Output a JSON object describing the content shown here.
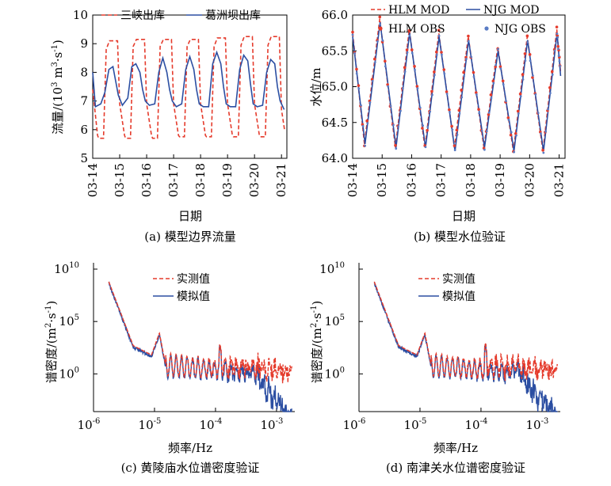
{
  "chart_data": [
    {
      "panel": "a",
      "type": "line",
      "caption": "(a) 模型边界流量",
      "xlabel": "日期",
      "ylabel": "流量/(10³ m³·s⁻¹)",
      "ylabel_main": "流量/(10",
      "ylabel_exp1": "3",
      "ylabel_mid": " m",
      "ylabel_exp2": "3",
      "ylabel_mid2": "·s",
      "ylabel_exp3": "-1",
      "ylabel_end": ")",
      "x_ticks": [
        "03-14",
        "03-15",
        "03-16",
        "03-17",
        "03-18",
        "03-19",
        "03-20",
        "03-21"
      ],
      "xlim": [
        0,
        7.2
      ],
      "ylim": [
        5,
        10
      ],
      "y_ticks": [
        5,
        6,
        7,
        8,
        9,
        10
      ],
      "legend_position": "top",
      "series": [
        {
          "name": "三峡出库",
          "style": "dashed",
          "color": "#e53b2c",
          "x": [
            0,
            0.18,
            0.22,
            0.4,
            0.5,
            0.62,
            0.92,
            1.0,
            1.18,
            1.22,
            1.4,
            1.5,
            1.62,
            1.92,
            2.0,
            2.18,
            2.22,
            2.4,
            2.5,
            2.62,
            2.92,
            3.0,
            3.18,
            3.22,
            3.4,
            3.5,
            3.62,
            3.92,
            4.0,
            4.18,
            4.22,
            4.4,
            4.5,
            4.62,
            4.92,
            5.0,
            5.18,
            5.22,
            5.4,
            5.5,
            5.62,
            5.92,
            6.0,
            6.18,
            6.22,
            6.4,
            6.5,
            6.62,
            6.92,
            7.0,
            7.12
          ],
          "y": [
            7.4,
            5.8,
            5.7,
            5.7,
            8.8,
            9.1,
            9.1,
            6.9,
            5.8,
            5.7,
            5.7,
            8.9,
            9.15,
            9.15,
            6.9,
            5.8,
            5.7,
            5.7,
            8.9,
            9.15,
            9.15,
            6.9,
            5.8,
            5.75,
            5.75,
            8.9,
            9.15,
            9.15,
            6.9,
            5.8,
            5.75,
            5.75,
            8.9,
            9.2,
            9.2,
            6.9,
            5.8,
            5.75,
            5.75,
            8.95,
            9.25,
            9.25,
            6.9,
            5.8,
            5.75,
            5.75,
            8.95,
            9.25,
            9.25,
            6.7,
            5.95
          ]
        },
        {
          "name": "葛洲坝出库",
          "style": "solid",
          "color": "#2b4ea2",
          "x": [
            0,
            0.1,
            0.3,
            0.45,
            0.6,
            0.75,
            0.85,
            0.95,
            1.1,
            1.3,
            1.45,
            1.6,
            1.75,
            1.85,
            1.95,
            2.1,
            2.3,
            2.45,
            2.6,
            2.75,
            2.85,
            2.95,
            3.1,
            3.3,
            3.45,
            3.6,
            3.75,
            3.85,
            3.95,
            4.1,
            4.3,
            4.45,
            4.6,
            4.75,
            4.85,
            4.95,
            5.1,
            5.3,
            5.45,
            5.6,
            5.75,
            5.85,
            5.95,
            6.1,
            6.3,
            6.45,
            6.6,
            6.75,
            6.85,
            6.95,
            7.1
          ],
          "y": [
            8.0,
            6.8,
            6.9,
            7.3,
            8.1,
            8.2,
            7.7,
            7.2,
            6.85,
            7.1,
            8.2,
            8.3,
            8.0,
            7.4,
            7.0,
            6.85,
            6.9,
            8.0,
            8.5,
            8.0,
            7.4,
            7.0,
            6.8,
            6.9,
            8.1,
            8.55,
            8.1,
            7.4,
            6.9,
            6.8,
            6.8,
            8.3,
            8.7,
            8.3,
            7.5,
            6.9,
            6.8,
            6.8,
            8.1,
            8.6,
            8.4,
            7.6,
            6.9,
            6.8,
            6.85,
            8.0,
            8.45,
            8.3,
            7.5,
            7.0,
            6.7
          ]
        }
      ]
    },
    {
      "panel": "b",
      "type": "line",
      "caption": "(b) 模型水位验证",
      "xlabel": "日期",
      "ylabel": "水位/m",
      "x_ticks": [
        "03-14",
        "03-15",
        "03-16",
        "03-17",
        "03-18",
        "03-19",
        "03-20",
        "03-21"
      ],
      "xlim": [
        0,
        7.2
      ],
      "ylim": [
        64.0,
        66.0
      ],
      "y_ticks": [
        "64.0",
        "64.5",
        "65.0",
        "65.5",
        "66.0"
      ],
      "legend_position": "top",
      "series": [
        {
          "name": "HLM MOD",
          "style": "dashed",
          "color": "#e53b2c",
          "x": [
            0,
            0.4,
            0.92,
            1.45,
            1.92,
            2.45,
            2.92,
            3.45,
            3.92,
            4.45,
            4.92,
            5.45,
            5.92,
            6.45,
            6.92,
            7.05
          ],
          "y": [
            65.75,
            64.2,
            65.95,
            64.15,
            65.8,
            64.15,
            65.75,
            64.15,
            65.7,
            64.15,
            65.55,
            64.1,
            65.7,
            64.1,
            65.8,
            65.2
          ]
        },
        {
          "name": "NJG MOD",
          "style": "solid",
          "color": "#2b4ea2",
          "x": [
            0,
            0.42,
            0.93,
            1.47,
            1.93,
            2.47,
            2.93,
            3.47,
            3.93,
            4.47,
            4.93,
            5.47,
            5.93,
            6.47,
            6.93,
            7.05
          ],
          "y": [
            65.7,
            64.2,
            65.9,
            64.15,
            65.75,
            64.15,
            65.7,
            64.1,
            65.65,
            64.15,
            65.5,
            64.1,
            65.65,
            64.1,
            65.75,
            65.15
          ]
        },
        {
          "name": "HLM OBS",
          "style": "points",
          "color": "#e53b2c"
        },
        {
          "name": "NJG OBS",
          "style": "points",
          "color": "#5a7cc4"
        }
      ]
    },
    {
      "panel": "c",
      "type": "line",
      "caption": "(c) 黄陵庙水位谱密度验证",
      "xlabel": "频率/Hz",
      "ylabel": "谱密度/(m²·s⁻¹)",
      "ylabel_main": "谱密度/(m",
      "ylabel_exp1": "2",
      "ylabel_mid": "·s",
      "ylabel_exp2": "-1",
      "ylabel_end": ")",
      "x_scale": "log",
      "y_scale": "log",
      "x_tick_exponents": [
        "-6",
        "-5",
        "-4",
        "-3"
      ],
      "y_tick_exponents": [
        "0",
        "5",
        "10"
      ],
      "tick_base": "10",
      "legend_position": "top",
      "series": [
        {
          "name": "实测值",
          "style": "dashed",
          "color": "#e53b2c"
        },
        {
          "name": "模拟值",
          "style": "solid",
          "color": "#2b4ea2"
        }
      ]
    },
    {
      "panel": "d",
      "type": "line",
      "caption": "(d) 南津关水位谱密度验证",
      "xlabel": "频率/Hz",
      "ylabel": "谱密度/(m²·s⁻¹)",
      "ylabel_main": "谱密度/(m",
      "ylabel_exp1": "2",
      "ylabel_mid": "·s",
      "ylabel_exp2": "-1",
      "ylabel_end": ")",
      "x_scale": "log",
      "y_scale": "log",
      "x_tick_exponents": [
        "-6",
        "-5",
        "-4",
        "-3"
      ],
      "y_tick_exponents": [
        "0",
        "5",
        "10"
      ],
      "tick_base": "10",
      "legend_position": "top",
      "series": [
        {
          "name": "实测值",
          "style": "dashed",
          "color": "#e53b2c"
        },
        {
          "name": "模拟值",
          "style": "solid",
          "color": "#2b4ea2"
        }
      ]
    }
  ]
}
